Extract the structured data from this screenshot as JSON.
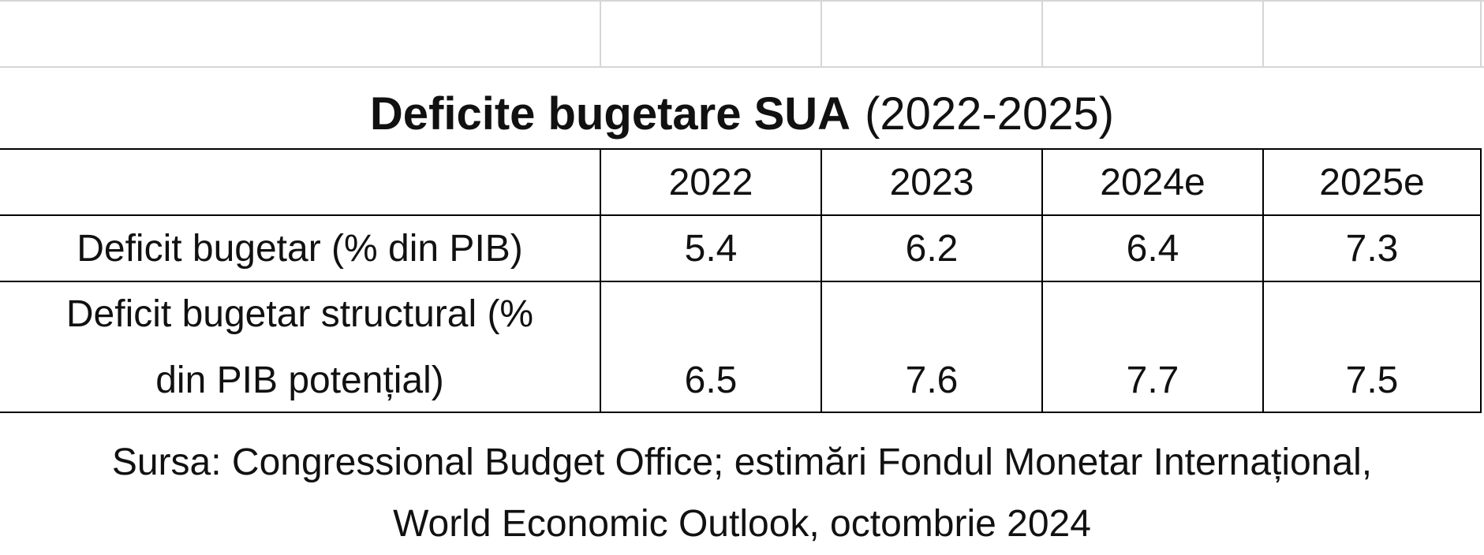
{
  "title": {
    "main": "Deficite bugetare SUA",
    "sub": "(2022-2025)"
  },
  "table": {
    "headers": [
      "",
      "2022",
      "2023",
      "2024e",
      "2025e"
    ],
    "rows": [
      {
        "label_lines": [
          "Deficit bugetar (% din PIB)"
        ],
        "values": [
          "5.4",
          "6.2",
          "6.4",
          "7.3"
        ]
      },
      {
        "label_lines": [
          "Deficit bugetar structural (%",
          "din PIB potențial)"
        ],
        "values": [
          "6.5",
          "7.6",
          "7.7",
          "7.5"
        ]
      }
    ]
  },
  "source": {
    "line1": "Sursa: Congressional Budget Office; estimări Fondul Monetar Internațional,",
    "line2": "World Economic Outlook, octombrie 2024"
  }
}
